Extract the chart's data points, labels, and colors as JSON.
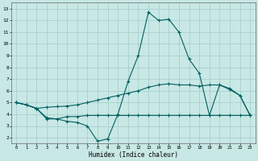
{
  "xlabel": "Humidex (Indice chaleur)",
  "bg_color": "#c8e8e5",
  "grid_color": "#a8d0ce",
  "line_color": "#006060",
  "xlim": [
    -0.5,
    23.5
  ],
  "ylim": [
    1.5,
    13.5
  ],
  "xticks": [
    0,
    1,
    2,
    3,
    4,
    5,
    6,
    7,
    8,
    9,
    10,
    11,
    12,
    13,
    14,
    15,
    16,
    17,
    18,
    19,
    20,
    21,
    22,
    23
  ],
  "yticks": [
    2,
    3,
    4,
    5,
    6,
    7,
    8,
    9,
    10,
    11,
    12,
    13
  ],
  "line_spike_x": [
    0,
    1,
    2,
    3,
    4,
    5,
    6,
    7,
    8,
    9,
    10,
    11,
    12,
    13,
    14,
    15,
    16,
    17,
    18,
    19,
    20,
    21,
    22,
    23
  ],
  "line_spike_y": [
    5.0,
    4.8,
    4.5,
    3.7,
    3.6,
    3.4,
    3.3,
    3.0,
    1.7,
    1.9,
    4.0,
    6.8,
    9.0,
    12.7,
    12.0,
    12.1,
    11.0,
    8.7,
    7.5,
    3.9,
    6.5,
    6.1,
    5.6,
    3.9
  ],
  "line_mid_x": [
    0,
    1,
    2,
    3,
    4,
    5,
    6,
    7,
    8,
    9,
    10,
    11,
    12,
    13,
    14,
    15,
    16,
    17,
    18,
    19,
    20,
    21,
    22,
    23
  ],
  "line_mid_y": [
    5.0,
    4.8,
    4.5,
    4.6,
    4.65,
    4.7,
    4.8,
    5.0,
    5.2,
    5.4,
    5.6,
    5.8,
    6.0,
    6.3,
    6.5,
    6.6,
    6.5,
    6.5,
    6.4,
    6.5,
    6.5,
    6.2,
    5.6,
    3.9
  ],
  "line_flat_x": [
    0,
    1,
    2,
    3,
    4,
    5,
    6,
    7,
    8,
    9,
    10,
    11,
    12,
    13,
    14,
    15,
    16,
    17,
    18,
    19,
    20,
    21,
    22,
    23
  ],
  "line_flat_y": [
    5.0,
    4.8,
    4.5,
    3.6,
    3.6,
    3.8,
    3.8,
    3.9,
    3.9,
    3.9,
    3.9,
    3.9,
    3.9,
    3.9,
    3.9,
    3.9,
    3.9,
    3.9,
    3.9,
    3.9,
    3.9,
    3.9,
    3.9,
    3.9
  ]
}
